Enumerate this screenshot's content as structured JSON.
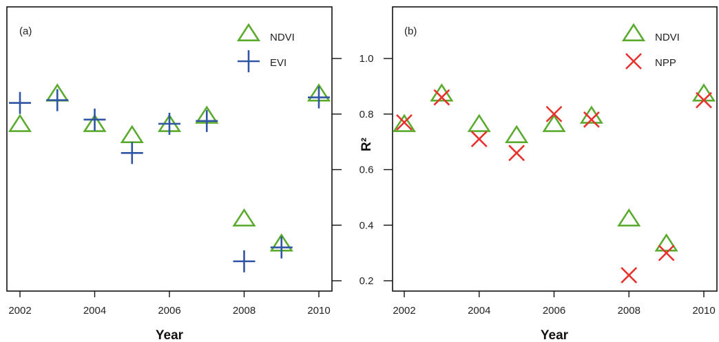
{
  "chart_data": [
    {
      "type": "scatter",
      "panel_label": "(a)",
      "xlabel": "Year",
      "ylabel": "",
      "x_ticks": [
        "2002",
        "2004",
        "2006",
        "2008",
        "2010"
      ],
      "y_ticks": [],
      "xlim": [
        2002,
        2010
      ],
      "ylim": [
        0.15,
        1.2
      ],
      "legend_position": "top-right",
      "series": [
        {
          "name": "NDVI",
          "marker": "triangle",
          "color": "#5aab2d",
          "x": [
            2002,
            2003,
            2004,
            2005,
            2006,
            2007,
            2008,
            2009,
            2010
          ],
          "y": [
            0.76,
            0.87,
            0.76,
            0.72,
            0.76,
            0.79,
            0.42,
            0.33,
            0.87
          ]
        },
        {
          "name": "EVI",
          "marker": "plus",
          "color": "#2f55a4",
          "x": [
            2002,
            2003,
            2004,
            2005,
            2006,
            2007,
            2008,
            2009,
            2010
          ],
          "y": [
            0.84,
            0.85,
            0.78,
            0.66,
            0.765,
            0.775,
            0.27,
            0.32,
            0.86
          ]
        }
      ]
    },
    {
      "type": "scatter",
      "panel_label": "(b)",
      "xlabel": "Year",
      "ylabel": "R²",
      "x_ticks": [
        "2002",
        "2004",
        "2006",
        "2008",
        "2010"
      ],
      "y_ticks": [
        "0.2",
        "0.4",
        "0.6",
        "0.8",
        "1.0"
      ],
      "xlim": [
        2002,
        2010
      ],
      "ylim": [
        0.15,
        1.2
      ],
      "legend_position": "top-right",
      "series": [
        {
          "name": "NDVI",
          "marker": "triangle",
          "color": "#5aab2d",
          "x": [
            2002,
            2003,
            2004,
            2005,
            2006,
            2007,
            2008,
            2009,
            2010
          ],
          "y": [
            0.76,
            0.87,
            0.76,
            0.72,
            0.76,
            0.79,
            0.42,
            0.33,
            0.87
          ]
        },
        {
          "name": "NPP",
          "marker": "x",
          "color": "#e8302c",
          "x": [
            2002,
            2003,
            2004,
            2005,
            2006,
            2007,
            2008,
            2009,
            2010
          ],
          "y": [
            0.77,
            0.86,
            0.71,
            0.66,
            0.8,
            0.78,
            0.22,
            0.3,
            0.85
          ]
        }
      ]
    }
  ]
}
